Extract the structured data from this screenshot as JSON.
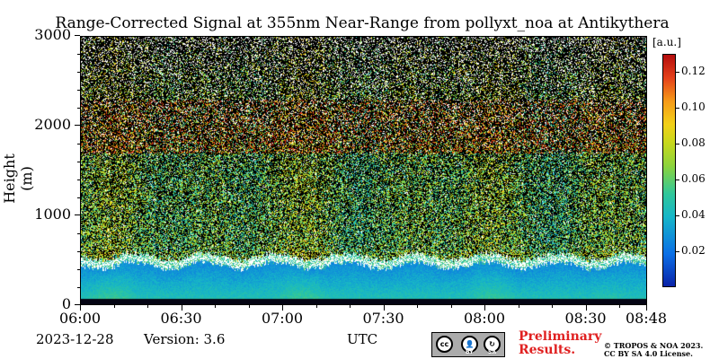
{
  "chart_data": {
    "type": "heatmap",
    "title": "Range-Corrected Signal at 355nm Near-Range from pollyxt_noa at Antikythera",
    "ylabel": "Height (m)",
    "xlabel": "UTC",
    "ylim": [
      0,
      3000
    ],
    "x_range": [
      "06:00",
      "08:48"
    ],
    "y_ticks": [
      "0",
      "1000",
      "2000",
      "3000"
    ],
    "x_ticks": [
      "06:00",
      "06:30",
      "07:00",
      "07:30",
      "08:00",
      "08:30",
      "08:48"
    ],
    "colorbar": {
      "unit": "[a.u.]",
      "range": [
        0.0,
        0.13
      ],
      "ticks": [
        "0.02",
        "0.04",
        "0.06",
        "0.08",
        "0.10",
        "0.12"
      ],
      "colormap": "jet-like (blue-cyan-green-yellow-red)"
    },
    "features": {
      "surface_low_signal_band_m": [
        0,
        80
      ],
      "boundary_layer_top_m": 500,
      "boundary_layer_signal_au": 0.04,
      "noisy_signal_above_m": 600,
      "elevated_layer_m": [
        1700,
        2300
      ]
    }
  },
  "footer": {
    "date": "2023-12-28",
    "version": "Version: 3.6",
    "preliminary_line1": "Preliminary",
    "preliminary_line2": "Results.",
    "copyright_line1": "© TROPOS & NOA 2023.",
    "copyright_line2": "CC BY SA 4.0 License.",
    "license_badge_by": "BY",
    "license_badge_sa": "SA",
    "license_badge_cc": "cc"
  },
  "colors": {
    "boundary_layer": "#2a8fd8",
    "noise_background": "#000000",
    "cloud_white": "#ffffff",
    "preliminary_red": "#e02020"
  }
}
